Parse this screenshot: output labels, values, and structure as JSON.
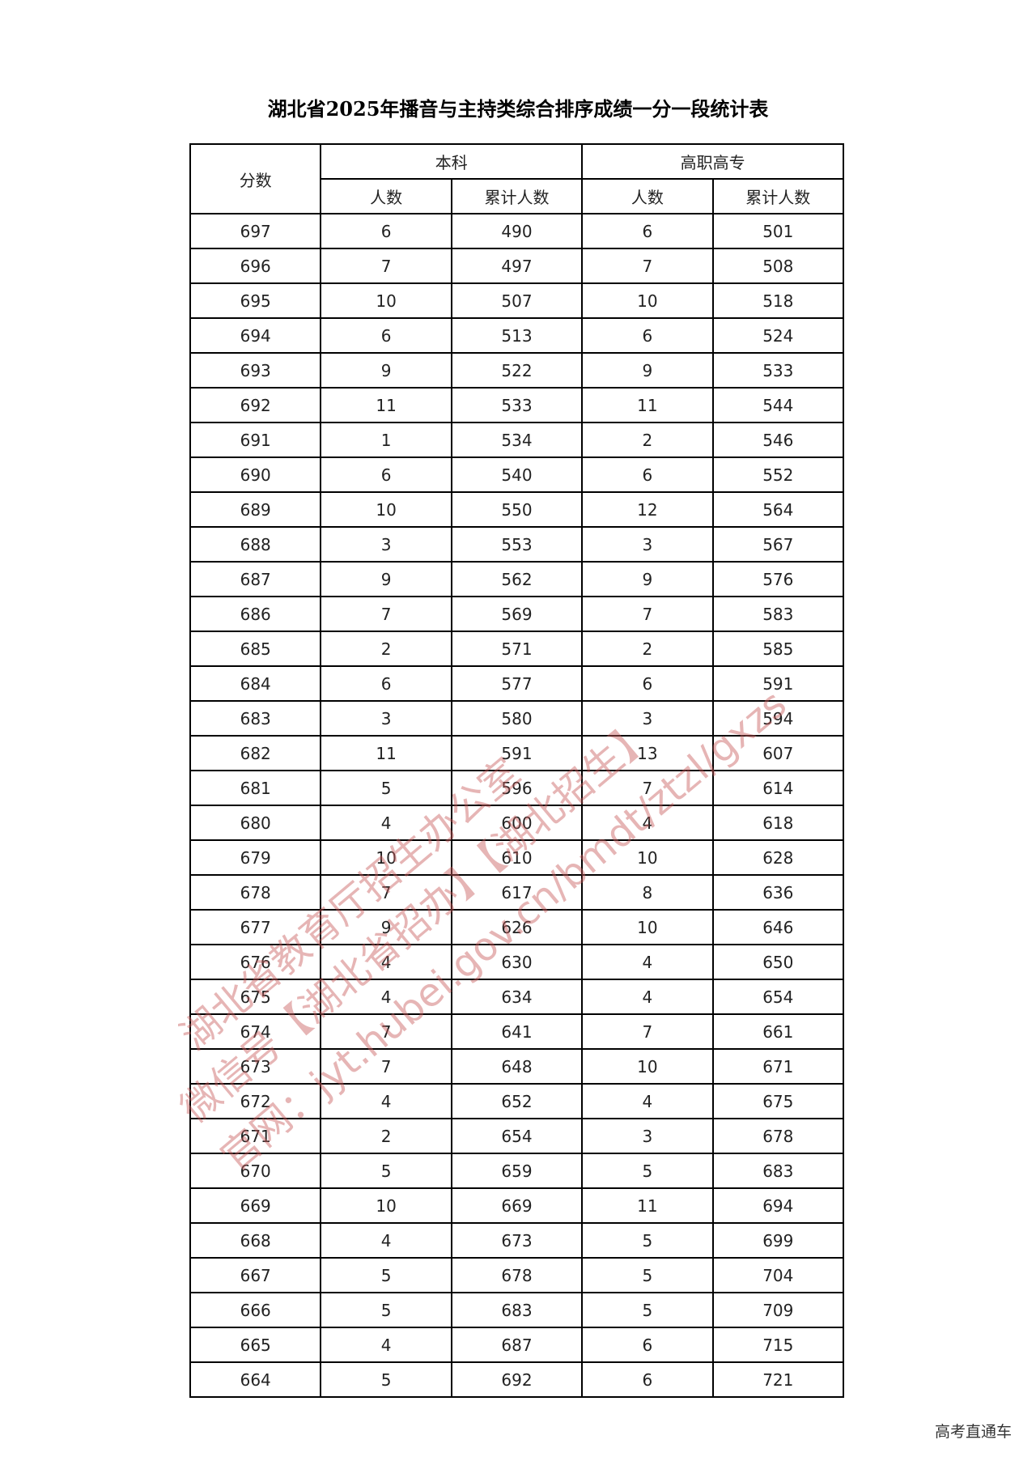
{
  "title": "湖北省2025年播音与主持类综合排序成绩一分一段统计表",
  "headers": {
    "score": "分数",
    "undergrad": "本科",
    "vocational": "高职高专",
    "count": "人数",
    "cumulative": "累计人数"
  },
  "rows": [
    [
      "697",
      "6",
      "490",
      "6",
      "501"
    ],
    [
      "696",
      "7",
      "497",
      "7",
      "508"
    ],
    [
      "695",
      "10",
      "507",
      "10",
      "518"
    ],
    [
      "694",
      "6",
      "513",
      "6",
      "524"
    ],
    [
      "693",
      "9",
      "522",
      "9",
      "533"
    ],
    [
      "692",
      "11",
      "533",
      "11",
      "544"
    ],
    [
      "691",
      "1",
      "534",
      "2",
      "546"
    ],
    [
      "690",
      "6",
      "540",
      "6",
      "552"
    ],
    [
      "689",
      "10",
      "550",
      "12",
      "564"
    ],
    [
      "688",
      "3",
      "553",
      "3",
      "567"
    ],
    [
      "687",
      "9",
      "562",
      "9",
      "576"
    ],
    [
      "686",
      "7",
      "569",
      "7",
      "583"
    ],
    [
      "685",
      "2",
      "571",
      "2",
      "585"
    ],
    [
      "684",
      "6",
      "577",
      "6",
      "591"
    ],
    [
      "683",
      "3",
      "580",
      "3",
      "594"
    ],
    [
      "682",
      "11",
      "591",
      "13",
      "607"
    ],
    [
      "681",
      "5",
      "596",
      "7",
      "614"
    ],
    [
      "680",
      "4",
      "600",
      "4",
      "618"
    ],
    [
      "679",
      "10",
      "610",
      "10",
      "628"
    ],
    [
      "678",
      "7",
      "617",
      "8",
      "636"
    ],
    [
      "677",
      "9",
      "626",
      "10",
      "646"
    ],
    [
      "676",
      "4",
      "630",
      "4",
      "650"
    ],
    [
      "675",
      "4",
      "634",
      "4",
      "654"
    ],
    [
      "674",
      "7",
      "641",
      "7",
      "661"
    ],
    [
      "673",
      "7",
      "648",
      "10",
      "671"
    ],
    [
      "672",
      "4",
      "652",
      "4",
      "675"
    ],
    [
      "671",
      "2",
      "654",
      "3",
      "678"
    ],
    [
      "670",
      "5",
      "659",
      "5",
      "683"
    ],
    [
      "669",
      "10",
      "669",
      "11",
      "694"
    ],
    [
      "668",
      "4",
      "673",
      "5",
      "699"
    ],
    [
      "667",
      "5",
      "678",
      "5",
      "704"
    ],
    [
      "666",
      "5",
      "683",
      "5",
      "709"
    ],
    [
      "665",
      "4",
      "687",
      "6",
      "715"
    ],
    [
      "664",
      "5",
      "692",
      "6",
      "721"
    ]
  ],
  "watermark": {
    "line1": "湖北省教育厅招生办公室",
    "line2": "微信号【湖北省招办】【湖北招生】",
    "line3": "官网：jyt.hubei.gov.cn/bmdt/ztzl/gxzs",
    "color": "#c85a5a"
  },
  "footer": "高考直通车"
}
